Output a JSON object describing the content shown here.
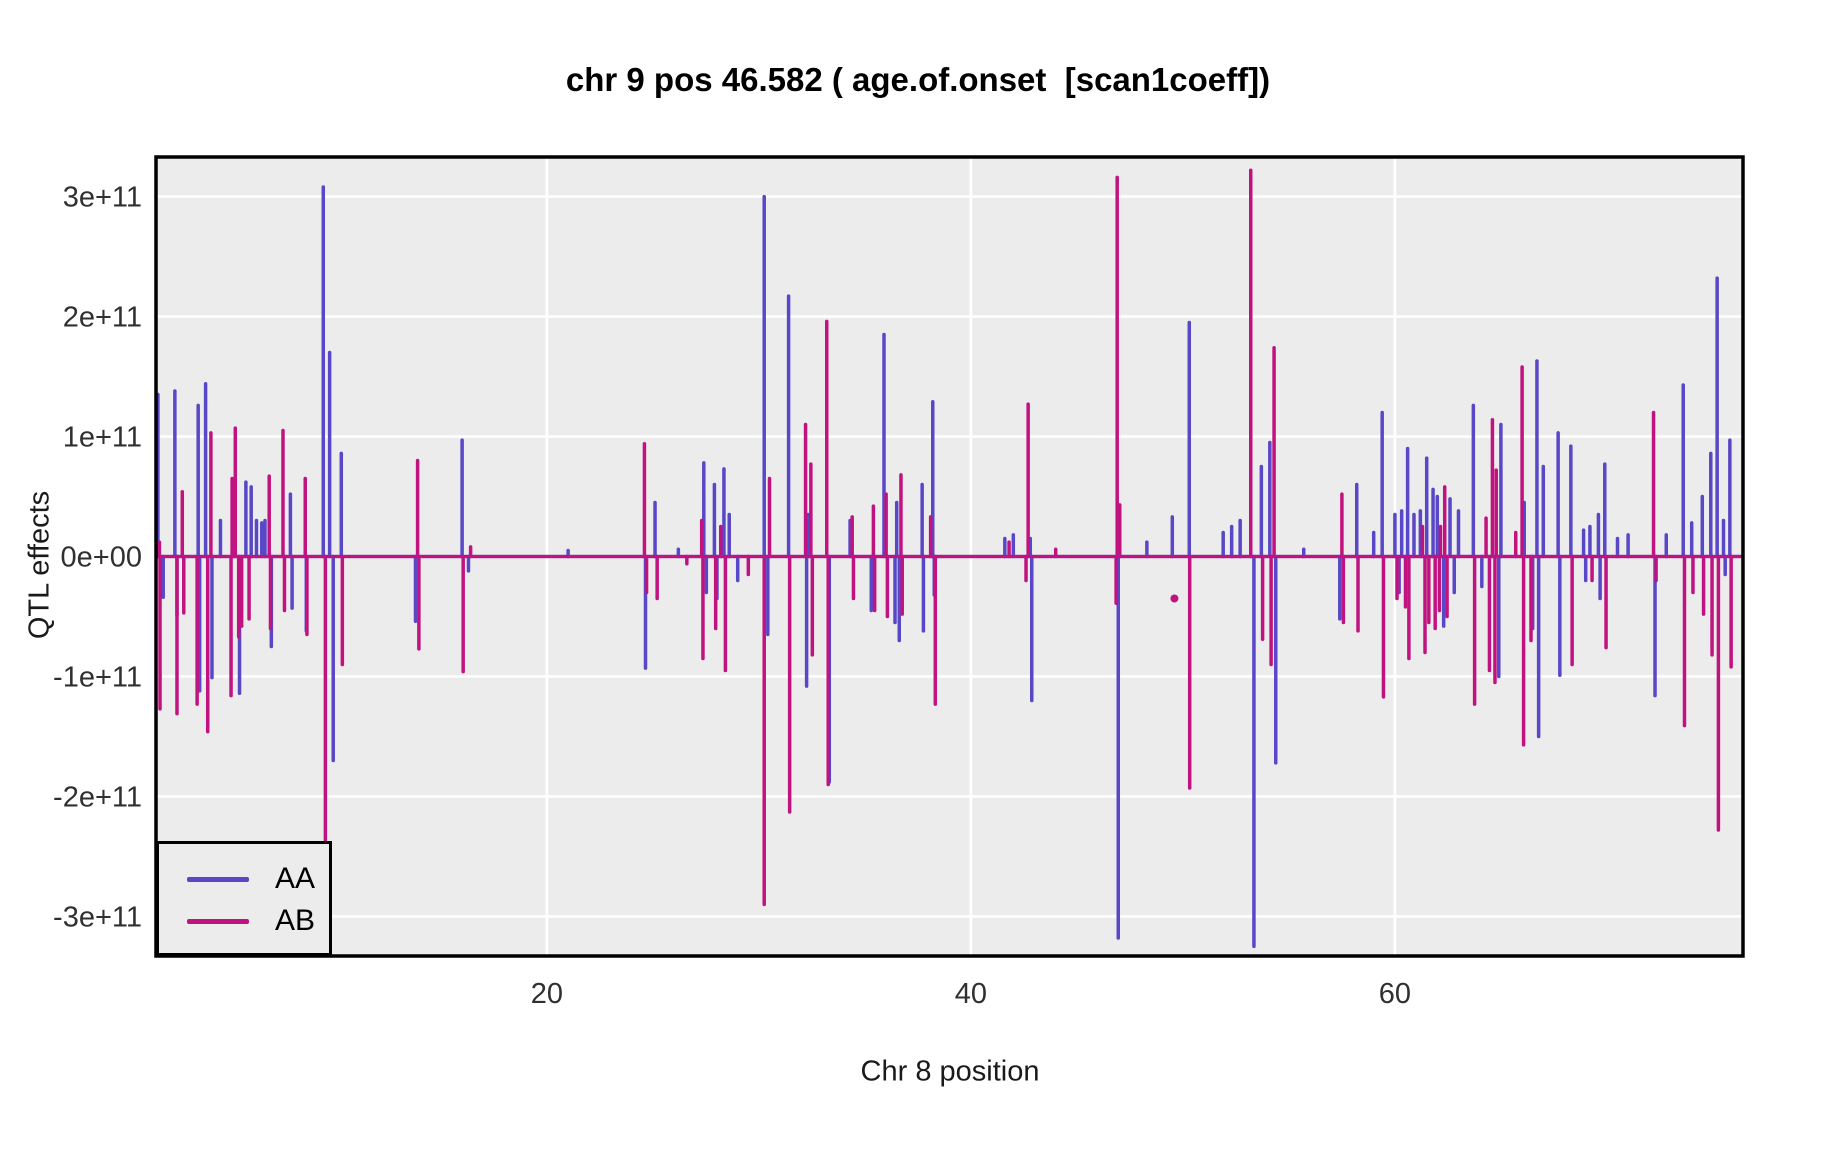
{
  "chart_data": {
    "type": "line",
    "title": "chr 9 pos 46.582 ( age.of.onset  [scan1coeff])",
    "xlabel": "Chr 8 position",
    "ylabel": "QTL effects",
    "xlim": [
      1.56,
      76.42
    ],
    "ylim": [
      -333000000000.0,
      333000000000.0
    ],
    "grid": "white-major-on-gray-panel",
    "panel_bg": "#ececec",
    "grid_color": "#ffffff",
    "x_ticks": [
      {
        "label": "20",
        "value": 20
      },
      {
        "label": "40",
        "value": 40
      },
      {
        "label": "60",
        "value": 60
      }
    ],
    "y_ticks": [
      {
        "label": "3e+11",
        "value": 300000000000.0
      },
      {
        "label": "2e+11",
        "value": 200000000000.0
      },
      {
        "label": "1e+11",
        "value": 100000000000.0
      },
      {
        "label": "0e+00",
        "value": 0.0
      },
      {
        "label": "-1e+11",
        "value": -100000000000.0
      },
      {
        "label": "-2e+11",
        "value": -200000000000.0
      },
      {
        "label": "-3e+11",
        "value": -300000000000.0
      }
    ],
    "legend": {
      "position": "bottom-left",
      "entries": [
        {
          "label": "AA",
          "color": "#5847c6"
        },
        {
          "label": "AB",
          "color": "#c1137f"
        }
      ]
    },
    "baseline_value": 0,
    "series": [
      {
        "name": "AA",
        "color": "#5847c6",
        "spikes": [
          [
            1.65,
            135000000000.0
          ],
          [
            1.9,
            -34000000000.0
          ],
          [
            2.45,
            138000000000.0
          ],
          [
            2.55,
            -49000000000.0
          ],
          [
            3.55,
            126000000000.0
          ],
          [
            3.62,
            -112000000000.0
          ],
          [
            3.9,
            144000000000.0
          ],
          [
            4.2,
            -101000000000.0
          ],
          [
            4.6,
            30000000000.0
          ],
          [
            5.5,
            -114000000000.0
          ],
          [
            5.8,
            62000000000.0
          ],
          [
            6.05,
            58000000000.0
          ],
          [
            6.3,
            30000000000.0
          ],
          [
            6.55,
            28000000000.0
          ],
          [
            6.7,
            30000000000.0
          ],
          [
            7.0,
            -75000000000.0
          ],
          [
            7.9,
            52000000000.0
          ],
          [
            7.98,
            -43000000000.0
          ],
          [
            8.65,
            -62000000000.0
          ],
          [
            9.45,
            308000000000.0
          ],
          [
            9.75,
            170000000000.0
          ],
          [
            9.92,
            -170000000000.0
          ],
          [
            10.3,
            86000000000.0
          ],
          [
            13.8,
            -54000000000.0
          ],
          [
            16.0,
            97000000000.0
          ],
          [
            16.3,
            -12000000000.0
          ],
          [
            21.0,
            5000000000.0
          ],
          [
            24.65,
            -93000000000.0
          ],
          [
            25.1,
            45000000000.0
          ],
          [
            26.2,
            6000000000.0
          ],
          [
            27.4,
            78000000000.0
          ],
          [
            27.52,
            -30000000000.0
          ],
          [
            27.9,
            60000000000.0
          ],
          [
            28.02,
            -35000000000.0
          ],
          [
            28.35,
            73000000000.0
          ],
          [
            28.6,
            35000000000.0
          ],
          [
            29.0,
            -20000000000.0
          ],
          [
            30.25,
            300000000000.0
          ],
          [
            30.42,
            -65000000000.0
          ],
          [
            31.4,
            217000000000.0
          ],
          [
            32.25,
            -108000000000.0
          ],
          [
            32.32,
            35000000000.0
          ],
          [
            33.32,
            -188000000000.0
          ],
          [
            34.3,
            30000000000.0
          ],
          [
            35.3,
            -45000000000.0
          ],
          [
            35.9,
            185000000000.0
          ],
          [
            36.42,
            -55000000000.0
          ],
          [
            36.5,
            45000000000.0
          ],
          [
            36.62,
            -70000000000.0
          ],
          [
            37.7,
            60000000000.0
          ],
          [
            37.76,
            -62000000000.0
          ],
          [
            38.2,
            129000000000.0
          ],
          [
            38.27,
            -32000000000.0
          ],
          [
            41.6,
            15000000000.0
          ],
          [
            42.0,
            18000000000.0
          ],
          [
            42.8,
            15000000000.0
          ],
          [
            42.87,
            -120000000000.0
          ],
          [
            46.95,
            -318000000000.0
          ],
          [
            48.3,
            12000000000.0
          ],
          [
            49.5,
            33000000000.0
          ],
          [
            50.3,
            195000000000.0
          ],
          [
            51.9,
            20000000000.0
          ],
          [
            52.3,
            25000000000.0
          ],
          [
            52.7,
            30000000000.0
          ],
          [
            53.35,
            -325000000000.0
          ],
          [
            53.7,
            75000000000.0
          ],
          [
            54.1,
            95000000000.0
          ],
          [
            54.38,
            -172000000000.0
          ],
          [
            55.7,
            6000000000.0
          ],
          [
            57.4,
            -52000000000.0
          ],
          [
            58.2,
            60000000000.0
          ],
          [
            59.0,
            20000000000.0
          ],
          [
            59.4,
            120000000000.0
          ],
          [
            60.0,
            35000000000.0
          ],
          [
            60.2,
            -30000000000.0
          ],
          [
            60.32,
            38000000000.0
          ],
          [
            60.6,
            90000000000.0
          ],
          [
            60.9,
            35000000000.0
          ],
          [
            61.2,
            38000000000.0
          ],
          [
            61.5,
            82000000000.0
          ],
          [
            61.8,
            56000000000.0
          ],
          [
            62.0,
            50000000000.0
          ],
          [
            62.3,
            -58000000000.0
          ],
          [
            62.6,
            48000000000.0
          ],
          [
            62.8,
            -30000000000.0
          ],
          [
            63.0,
            38000000000.0
          ],
          [
            63.7,
            126000000000.0
          ],
          [
            64.1,
            -25000000000.0
          ],
          [
            64.9,
            -100000000000.0
          ],
          [
            65.0,
            110000000000.0
          ],
          [
            66.1,
            45000000000.0
          ],
          [
            66.5,
            -60000000000.0
          ],
          [
            66.7,
            163000000000.0
          ],
          [
            66.78,
            -150000000000.0
          ],
          [
            67.0,
            75000000000.0
          ],
          [
            67.7,
            103000000000.0
          ],
          [
            67.78,
            -99000000000.0
          ],
          [
            68.3,
            92000000000.0
          ],
          [
            68.9,
            22000000000.0
          ],
          [
            69.0,
            -20000000000.0
          ],
          [
            69.2,
            25000000000.0
          ],
          [
            69.6,
            35000000000.0
          ],
          [
            69.68,
            -35000000000.0
          ],
          [
            69.9,
            77000000000.0
          ],
          [
            70.5,
            15000000000.0
          ],
          [
            71.0,
            18000000000.0
          ],
          [
            72.27,
            -116000000000.0
          ],
          [
            72.8,
            18000000000.0
          ],
          [
            73.6,
            143000000000.0
          ],
          [
            74.0,
            28000000000.0
          ],
          [
            74.5,
            50000000000.0
          ],
          [
            74.9,
            86000000000.0
          ],
          [
            75.2,
            232000000000.0
          ],
          [
            75.5,
            30000000000.0
          ],
          [
            75.58,
            -15000000000.0
          ],
          [
            75.8,
            97000000000.0
          ]
        ],
        "dots": []
      },
      {
        "name": "AB",
        "color": "#c1137f",
        "spikes": [
          [
            1.72,
            12000000000.0
          ],
          [
            1.75,
            -127000000000.0
          ],
          [
            2.55,
            -131000000000.0
          ],
          [
            2.8,
            54000000000.0
          ],
          [
            2.87,
            -47000000000.0
          ],
          [
            3.5,
            -123000000000.0
          ],
          [
            4.0,
            -146000000000.0
          ],
          [
            4.15,
            103000000000.0
          ],
          [
            5.1,
            -116000000000.0
          ],
          [
            5.15,
            65000000000.0
          ],
          [
            5.3,
            107000000000.0
          ],
          [
            5.46,
            -67000000000.0
          ],
          [
            5.6,
            -58000000000.0
          ],
          [
            5.95,
            -52000000000.0
          ],
          [
            6.9,
            67000000000.0
          ],
          [
            6.96,
            -60000000000.0
          ],
          [
            7.55,
            105000000000.0
          ],
          [
            7.62,
            -45000000000.0
          ],
          [
            8.6,
            65000000000.0
          ],
          [
            8.68,
            -65000000000.0
          ],
          [
            9.55,
            -239000000000.0
          ],
          [
            10.35,
            -90000000000.0
          ],
          [
            13.9,
            80000000000.0
          ],
          [
            13.96,
            -77000000000.0
          ],
          [
            16.05,
            -96000000000.0
          ],
          [
            16.4,
            8000000000.0
          ],
          [
            24.6,
            94000000000.0
          ],
          [
            24.7,
            -30000000000.0
          ],
          [
            25.2,
            -35000000000.0
          ],
          [
            26.6,
            -6000000000.0
          ],
          [
            27.3,
            30000000000.0
          ],
          [
            27.36,
            -85000000000.0
          ],
          [
            27.96,
            -60000000000.0
          ],
          [
            28.2,
            25000000000.0
          ],
          [
            28.42,
            -95000000000.0
          ],
          [
            29.5,
            -15000000000.0
          ],
          [
            30.25,
            -290000000000.0
          ],
          [
            30.5,
            65000000000.0
          ],
          [
            31.45,
            -213000000000.0
          ],
          [
            32.2,
            110000000000.0
          ],
          [
            32.45,
            77000000000.0
          ],
          [
            32.52,
            -82000000000.0
          ],
          [
            33.2,
            196000000000.0
          ],
          [
            33.27,
            -190000000000.0
          ],
          [
            34.4,
            33000000000.0
          ],
          [
            34.46,
            -35000000000.0
          ],
          [
            35.4,
            42000000000.0
          ],
          [
            35.46,
            -45000000000.0
          ],
          [
            36.0,
            52000000000.0
          ],
          [
            36.06,
            -50000000000.0
          ],
          [
            36.7,
            68000000000.0
          ],
          [
            36.76,
            -48000000000.0
          ],
          [
            38.1,
            33000000000.0
          ],
          [
            38.32,
            -123000000000.0
          ],
          [
            41.8,
            12000000000.0
          ],
          [
            42.6,
            -20000000000.0
          ],
          [
            42.7,
            127000000000.0
          ],
          [
            44.0,
            6000000000.0
          ],
          [
            46.85,
            -39000000000.0
          ],
          [
            46.9,
            316000000000.0
          ],
          [
            47.02,
            43000000000.0
          ],
          [
            50.32,
            -193000000000.0
          ],
          [
            53.2,
            322000000000.0
          ],
          [
            53.76,
            -69000000000.0
          ],
          [
            54.16,
            -90000000000.0
          ],
          [
            54.3,
            174000000000.0
          ],
          [
            57.5,
            52000000000.0
          ],
          [
            57.57,
            -55000000000.0
          ],
          [
            58.26,
            -62000000000.0
          ],
          [
            59.46,
            -117000000000.0
          ],
          [
            60.1,
            -35000000000.0
          ],
          [
            60.5,
            -42000000000.0
          ],
          [
            60.66,
            -85000000000.0
          ],
          [
            61.3,
            25000000000.0
          ],
          [
            61.42,
            -80000000000.0
          ],
          [
            61.6,
            -55000000000.0
          ],
          [
            61.9,
            -60000000000.0
          ],
          [
            62.1,
            -45000000000.0
          ],
          [
            62.15,
            25000000000.0
          ],
          [
            62.35,
            58000000000.0
          ],
          [
            62.46,
            -50000000000.0
          ],
          [
            63.76,
            -123000000000.0
          ],
          [
            64.3,
            32000000000.0
          ],
          [
            64.46,
            -95000000000.0
          ],
          [
            64.6,
            114000000000.0
          ],
          [
            64.72,
            -105000000000.0
          ],
          [
            64.78,
            72000000000.0
          ],
          [
            65.7,
            20000000000.0
          ],
          [
            66.0,
            158000000000.0
          ],
          [
            66.07,
            -157000000000.0
          ],
          [
            66.42,
            -70000000000.0
          ],
          [
            68.36,
            -90000000000.0
          ],
          [
            69.3,
            -20000000000.0
          ],
          [
            69.96,
            -76000000000.0
          ],
          [
            72.2,
            120000000000.0
          ],
          [
            72.32,
            -20000000000.0
          ],
          [
            73.66,
            -141000000000.0
          ],
          [
            74.06,
            -30000000000.0
          ],
          [
            74.56,
            -48000000000.0
          ],
          [
            74.96,
            -82000000000.0
          ],
          [
            75.26,
            -228000000000.0
          ],
          [
            75.86,
            -92000000000.0
          ]
        ],
        "dots": [
          [
            49.6,
            -35000000000.0
          ]
        ]
      }
    ]
  }
}
